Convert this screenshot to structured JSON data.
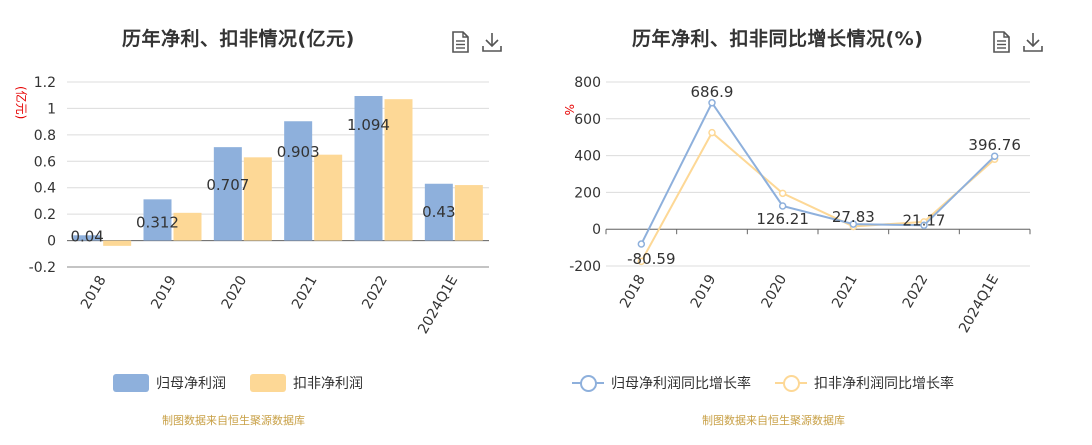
{
  "left": {
    "title": "历年净利、扣非情况(亿元)",
    "unit": "(亿元)",
    "source": "制图数据来自恒生聚源数据库"
  },
  "right": {
    "title": "历年净利、扣非同比增长情况(%)",
    "unit": "%",
    "source": "制图数据来自恒生聚源数据库"
  },
  "icons": {
    "doc": "document-icon",
    "download": "download-icon"
  },
  "chart_data": [
    {
      "type": "bar",
      "title": "历年净利、扣非情况(亿元)",
      "ylabel": "(亿元)",
      "categories": [
        "2018",
        "2019",
        "2020",
        "2021",
        "2022",
        "2024Q1E"
      ],
      "ylim": [
        -0.2,
        1.2
      ],
      "yticks": [
        "1.2",
        "1",
        "0.8",
        "0.6",
        "0.4",
        "0.2",
        "0",
        "-0.2"
      ],
      "series": [
        {
          "name": "归母净利润",
          "color": "#8eb0dc",
          "values": [
            0.04,
            0.312,
            0.707,
            0.903,
            1.094,
            0.43
          ],
          "labels": [
            "0.04",
            "0.312",
            "0.707",
            "0.903",
            "1.094",
            "0.43"
          ]
        },
        {
          "name": "扣非净利润",
          "color": "#fdd896",
          "values": [
            -0.04,
            0.21,
            0.63,
            0.65,
            1.07,
            0.42
          ]
        }
      ],
      "grid": true,
      "legend": "bottom"
    },
    {
      "type": "line",
      "title": "历年净利、扣非同比增长情况(%)",
      "ylabel": "%",
      "categories": [
        "2018",
        "2019",
        "2020",
        "2021",
        "2022",
        "2024Q1E"
      ],
      "ylim": [
        -200,
        800
      ],
      "yticks": [
        "800",
        "600",
        "400",
        "200",
        "0",
        "-200"
      ],
      "series": [
        {
          "name": "归母净利润同比增长率",
          "color": "#8eb0dc",
          "values": [
            -80.59,
            686.9,
            126.21,
            27.83,
            21.17,
            396.76
          ],
          "labels": [
            "-80.59",
            "686.9",
            "126.21",
            "27.83",
            "21.17",
            "396.76"
          ]
        },
        {
          "name": "扣非净利润同比增长率",
          "color": "#fdd896",
          "values": [
            -175,
            525,
            195,
            15,
            40,
            380
          ]
        }
      ],
      "grid": true,
      "legend": "bottom"
    }
  ]
}
